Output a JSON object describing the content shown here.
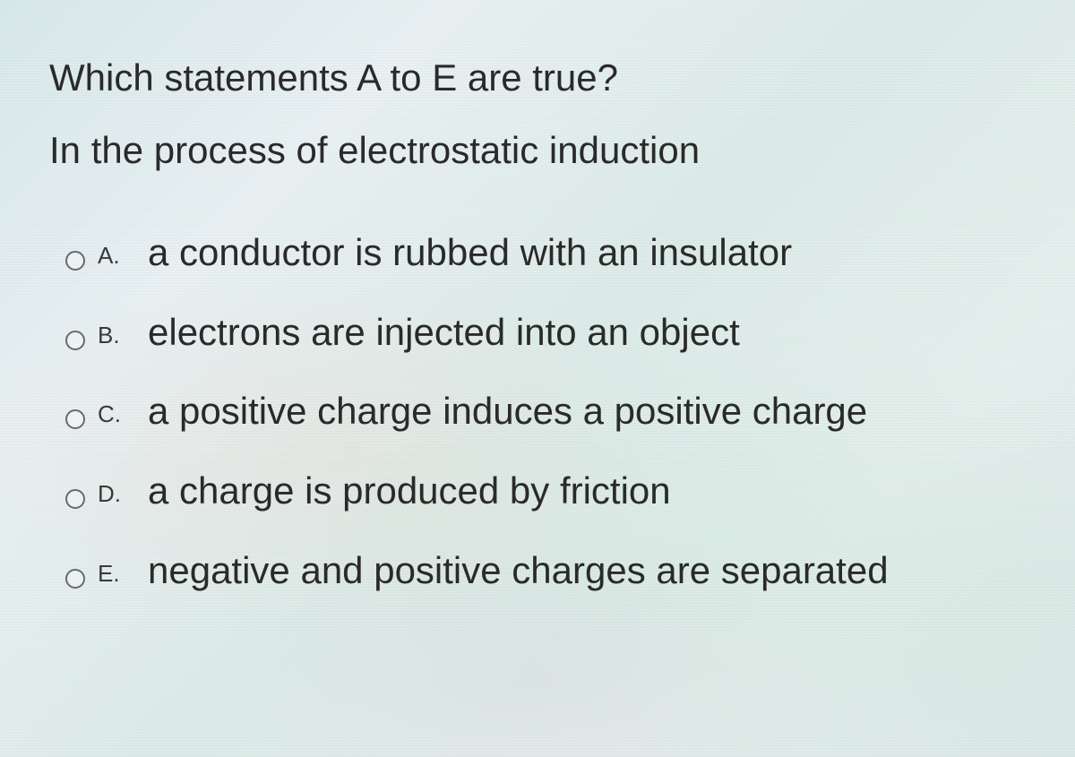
{
  "question": {
    "title": "Which statements A to E are true?",
    "context": "In the process of electrostatic induction",
    "options": [
      {
        "letter": "A.",
        "text": "a conductor is rubbed with an insulator"
      },
      {
        "letter": "B.",
        "text": "electrons are injected into an object"
      },
      {
        "letter": "C.",
        "text": "a positive charge induces a positive charge"
      },
      {
        "letter": "D.",
        "text": "a charge is produced by friction"
      },
      {
        "letter": "E.",
        "text": "negative and positive charges are separated"
      }
    ]
  },
  "style": {
    "background_colors": [
      "#d8e8ea",
      "#e8f0f2",
      "#dcebe8",
      "#e5efed",
      "#dae8e6"
    ],
    "text_color": "#2a2a2a",
    "letter_color": "#3a3a3a",
    "radio_border_color": "#6a6a6a",
    "title_fontsize": 42,
    "option_fontsize": 42,
    "letter_fontsize": 26
  }
}
